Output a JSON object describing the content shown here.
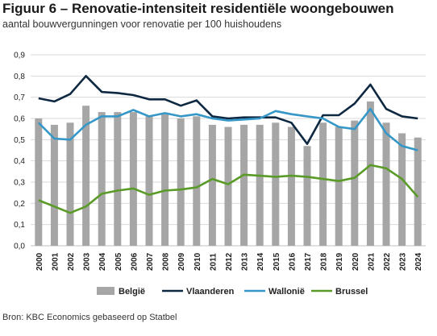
{
  "header": {
    "title": "Figuur 6 – Renovatie-intensiteit residentiële woongebouwen",
    "subtitle": "aantal bouwvergunningen voor renovatie per 100 huishoudens"
  },
  "footer": {
    "source": "Bron: KBC Economics gebaseerd op Statbel"
  },
  "chart_data": {
    "type": "bar",
    "categories": [
      "2000",
      "2001",
      "2002",
      "2003",
      "2004",
      "2005",
      "2006",
      "2007",
      "2008",
      "2009",
      "2010",
      "2011",
      "2012",
      "2013",
      "2014",
      "2015",
      "2016",
      "2017",
      "2018",
      "2019",
      "2020",
      "2021",
      "2022",
      "2023",
      "2024"
    ],
    "ylim": [
      0,
      0.9
    ],
    "yticks": [
      "0,0",
      "0,1",
      "0,2",
      "0,3",
      "0,4",
      "0,5",
      "0,6",
      "0,7",
      "0,8",
      "0,9"
    ],
    "grid": true,
    "legend_position": "bottom",
    "series": [
      {
        "name": "België",
        "type": "bar",
        "color": "#a6a6a6",
        "values": [
          0.6,
          0.57,
          0.58,
          0.66,
          0.63,
          0.63,
          0.63,
          0.61,
          0.62,
          0.6,
          0.61,
          0.57,
          0.56,
          0.57,
          0.57,
          0.58,
          0.56,
          0.47,
          0.58,
          0.56,
          0.59,
          0.68,
          0.58,
          0.53,
          0.51
        ]
      },
      {
        "name": "Vlaanderen",
        "type": "line",
        "color": "#0e2841",
        "values": [
          0.695,
          0.68,
          0.715,
          0.8,
          0.725,
          0.72,
          0.71,
          0.69,
          0.69,
          0.66,
          0.685,
          0.61,
          0.6,
          0.605,
          0.605,
          0.605,
          0.58,
          0.48,
          0.615,
          0.615,
          0.67,
          0.76,
          0.645,
          0.61,
          0.6
        ]
      },
      {
        "name": "Wallonië",
        "type": "line",
        "color": "#3597c7",
        "values": [
          0.58,
          0.505,
          0.5,
          0.57,
          0.61,
          0.61,
          0.64,
          0.61,
          0.625,
          0.61,
          0.62,
          0.6,
          0.59,
          0.595,
          0.6,
          0.635,
          0.62,
          0.61,
          0.6,
          0.56,
          0.55,
          0.645,
          0.53,
          0.47,
          0.45
        ]
      },
      {
        "name": "Brussel",
        "type": "line",
        "color": "#5a9b28",
        "values": [
          0.215,
          0.185,
          0.155,
          0.185,
          0.245,
          0.26,
          0.27,
          0.24,
          0.26,
          0.265,
          0.275,
          0.315,
          0.29,
          0.335,
          0.33,
          0.325,
          0.33,
          0.325,
          0.315,
          0.305,
          0.32,
          0.38,
          0.365,
          0.315,
          0.23
        ]
      }
    ]
  }
}
